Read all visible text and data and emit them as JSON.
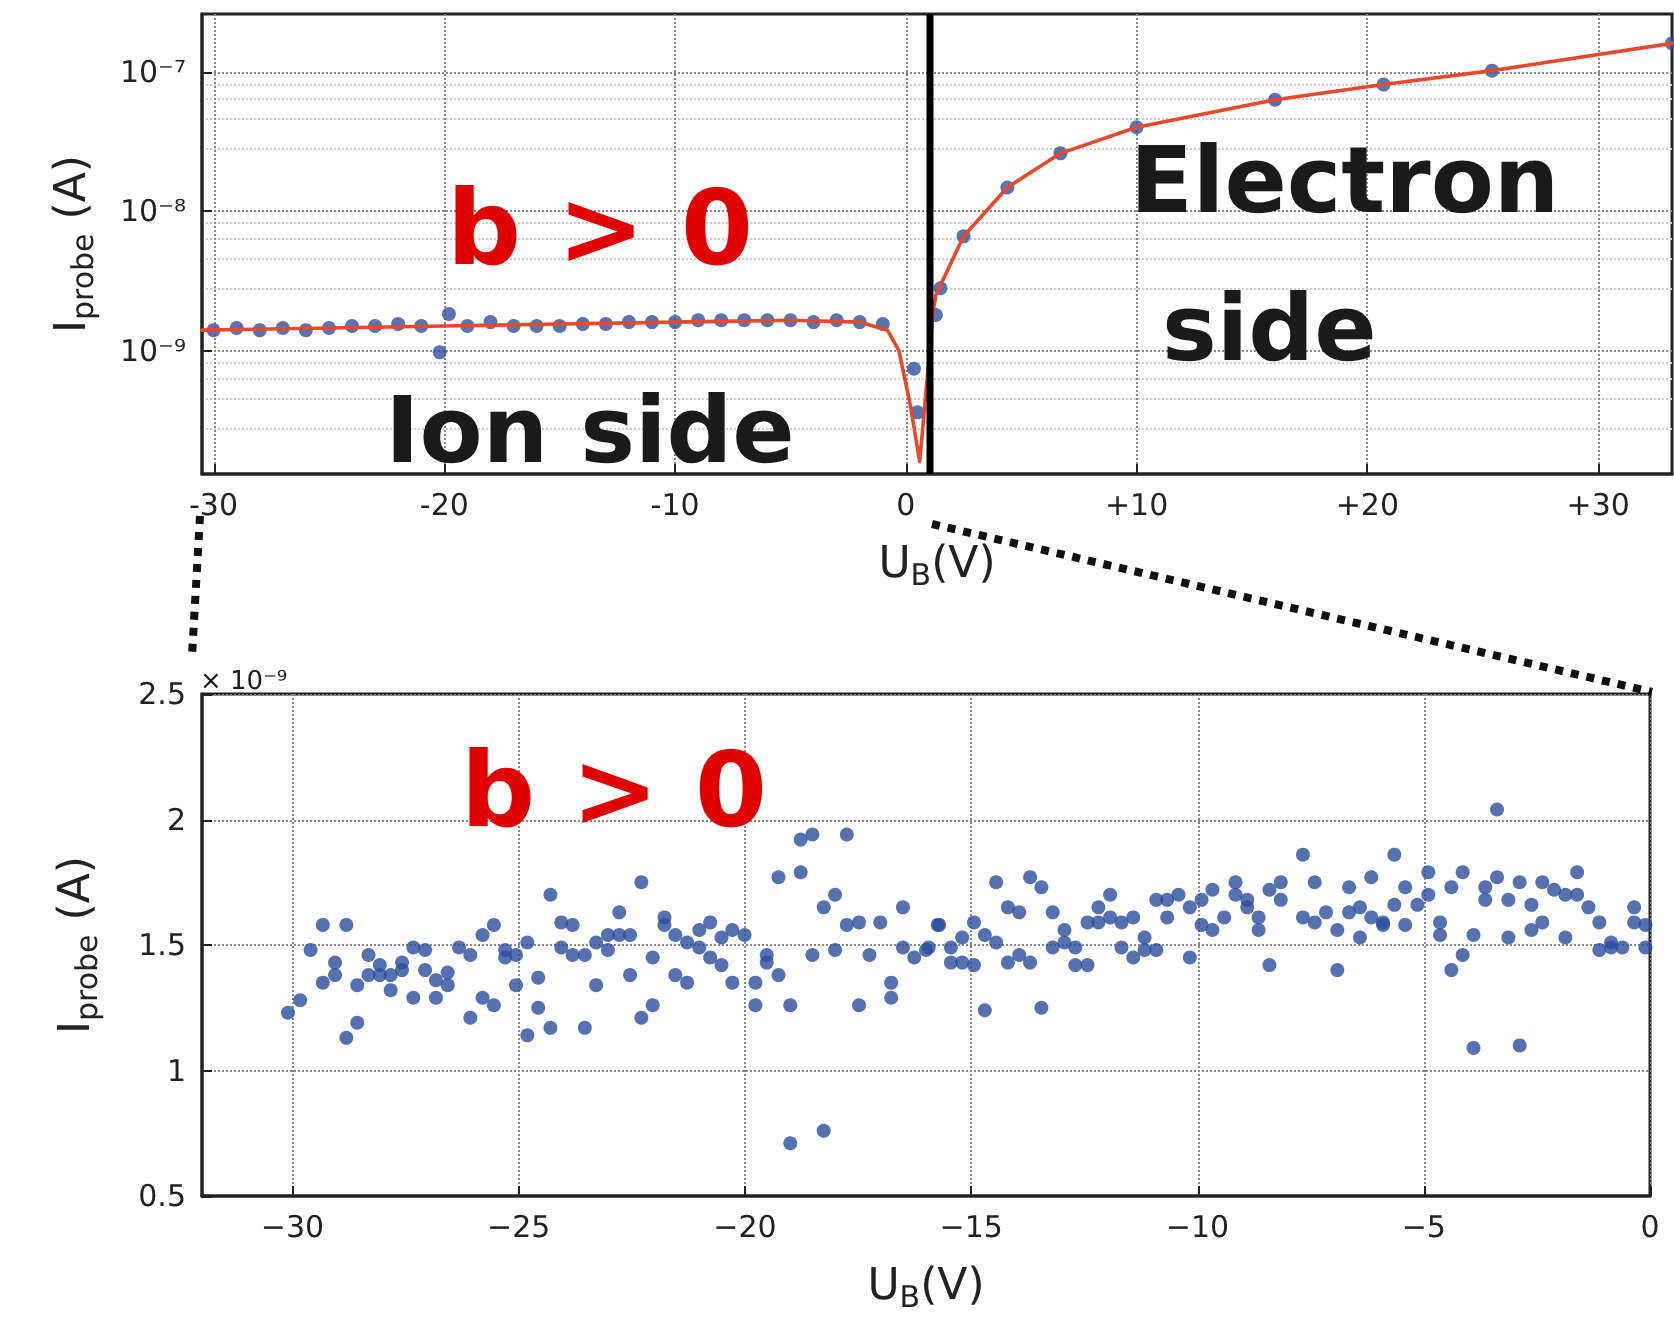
{
  "chart_data": [
    {
      "type": "line",
      "xlabel": "U$_{B}$(V)",
      "ylabel": "I$_{probe}$ (A)",
      "log": "y",
      "grid": true,
      "xlim": [
        -30.5,
        33.2
      ],
      "xticks": [
        -30,
        -20,
        -10,
        0,
        {
          "value": 10,
          "label": "+10"
        },
        {
          "value": 20,
          "label": "+20"
        },
        {
          "value": 30,
          "label": "+30"
        }
      ],
      "ylim": [
        1.3e-10,
        2.6e-07
      ],
      "yticks": [
        {
          "value": 1e-09,
          "label": "10⁻⁹"
        },
        {
          "value": 1e-08,
          "label": "10⁻⁸"
        },
        {
          "value": 1e-07,
          "label": "10⁻⁷"
        }
      ],
      "annotations": [
        "b > 0",
        "Ion side",
        "Electron side"
      ],
      "ref_lines": [
        {
          "axis": "x",
          "value": 1,
          "label": null,
          "color": "#000000"
        }
      ],
      "series": [
        {
          "type": "scatter",
          "marker": "circle",
          "color": "#3050a0",
          "x": [
            -30,
            -29,
            -28,
            -27,
            -26,
            -25,
            -24,
            -23,
            -22,
            -21,
            -20.2,
            -19.8,
            -19,
            -18,
            -17,
            -16,
            -15,
            -14,
            -13,
            -12,
            -11,
            -10,
            -9,
            -8,
            -7,
            -6,
            -5,
            -4,
            -3,
            -2,
            -1,
            0.35,
            0.5,
            1.3,
            1.5,
            2.5,
            4.4,
            6.7,
            10,
            16,
            20.7,
            25.4,
            33.2
          ],
          "values": [
            1.4e-09,
            1.45e-09,
            1.4e-09,
            1.45e-09,
            1.4e-09,
            1.45e-09,
            1.5e-09,
            1.5e-09,
            1.55e-09,
            1.5e-09,
            9.7e-10,
            1.83e-09,
            1.5e-09,
            1.6e-09,
            1.5e-09,
            1.5e-09,
            1.5e-09,
            1.55e-09,
            1.55e-09,
            1.6e-09,
            1.6e-09,
            1.6e-09,
            1.65e-09,
            1.65e-09,
            1.65e-09,
            1.65e-09,
            1.65e-09,
            1.6e-09,
            1.65e-09,
            1.6e-09,
            1.55e-09,
            7.4e-10,
            3.6e-10,
            1.8e-09,
            2.8e-09,
            6.6e-09,
            1.48e-08,
            2.6e-08,
            4e-08,
            6.3e-08,
            8.1e-08,
            1.02e-07,
            1.6e-07
          ]
        },
        {
          "marker": "none",
          "color": "#e8482c",
          "x": [
            -30.5,
            -25,
            -20,
            -15,
            -10,
            -5,
            -2,
            -0.8,
            -0.3,
            0.2,
            0.6,
            1.2,
            1.3,
            2.5,
            4.4,
            6.7,
            10,
            16,
            20.7,
            25.4,
            33.2
          ],
          "values": [
            1.4e-09,
            1.45e-09,
            1.5e-09,
            1.55e-09,
            1.6e-09,
            1.65e-09,
            1.6e-09,
            1.4e-09,
            1e-09,
            4e-10,
            1.6e-10,
            2e-09,
            2.5e-09,
            6.6e-09,
            1.48e-08,
            2.6e-08,
            4e-08,
            6.3e-08,
            8.1e-08,
            1.02e-07,
            1.6e-07
          ]
        }
      ]
    },
    {
      "type": "scatter",
      "xlabel": "U$_{B}$(V)",
      "ylabel": "I$_{probe}$ (A)",
      "grid": true,
      "marker": "circle",
      "xlim": [
        -32,
        0
      ],
      "xticks": [
        {
          "value": -30,
          "label": "−30"
        },
        {
          "value": -25,
          "label": "−25"
        },
        {
          "value": -20,
          "label": "−20"
        },
        {
          "value": -15,
          "label": "−15"
        },
        {
          "value": -10,
          "label": "−10"
        },
        {
          "value": -5,
          "label": "−5"
        },
        0
      ],
      "ylim": [
        0.5,
        2.5
      ],
      "yticks": [
        0.5,
        1,
        1.5,
        2,
        2.5
      ],
      "annotations": [
        "b > 0",
        "× 10⁻⁹"
      ],
      "series": [
        {
          "color": "#2a4d9c",
          "x": [
            -30.1,
            -29.83,
            -29.6,
            -29.33,
            -29.33,
            -29.06,
            -29.06,
            -28.81,
            -28.81,
            -28.57,
            -28.57,
            -28.32,
            -28.32,
            -28.07,
            -28.07,
            -27.83,
            -27.83,
            -27.58,
            -27.58,
            -27.33,
            -27.33,
            -27.07,
            -27.07,
            -26.83,
            -26.83,
            -26.57,
            -26.57,
            -26.32,
            -26.07,
            -26.07,
            -25.8,
            -25.8,
            -25.55,
            -25.55,
            -25.3,
            -25.3,
            -25.06,
            -25.06,
            -24.81,
            -24.81,
            -24.57,
            -24.57,
            -24.3,
            -24.3,
            -24.06,
            -24.06,
            -23.81,
            -23.81,
            -23.54,
            -23.54,
            -23.29,
            -23.29,
            -23.03,
            -23.03,
            -22.78,
            -22.78,
            -22.54,
            -22.54,
            -22.29,
            -22.29,
            -22.04,
            -22.04,
            -21.78,
            -21.78,
            -21.54,
            -21.54,
            -21.28,
            -21.28,
            -21.01,
            -21.01,
            -20.77,
            -20.77,
            -20.52,
            -20.52,
            -20.28,
            -20.28,
            -20.01,
            -19.77,
            -19.77,
            -19.52,
            -19.52,
            -19.26,
            -19.26,
            -19.0,
            -19.0,
            -18.77,
            -18.77,
            -18.51,
            -18.51,
            -18.26,
            -18.26,
            -18.01,
            -18.01,
            -17.75,
            -17.75,
            -17.48,
            -17.48,
            -17.25,
            -17.01,
            -16.77,
            -16.77,
            -16.51,
            -16.51,
            -16.26,
            -16.0,
            -15.74,
            -15.94,
            -15.71,
            -15.45,
            -15.45,
            -15.2,
            -15.2,
            -14.94,
            -14.94,
            -14.7,
            -14.7,
            -14.45,
            -14.45,
            -14.19,
            -14.19,
            -13.94,
            -13.94,
            -13.7,
            -13.7,
            -13.45,
            -13.45,
            -13.2,
            -13.2,
            -12.94,
            -12.94,
            -12.7,
            -12.7,
            -12.43,
            -12.43,
            -12.19,
            -12.19,
            -11.93,
            -11.93,
            -11.68,
            -11.68,
            -11.42,
            -11.42,
            -11.17,
            -11.17,
            -10.91,
            -10.91,
            -10.67,
            -10.67,
            -10.42,
            -10.17,
            -10.17,
            -9.91,
            -9.91,
            -9.67,
            -9.67,
            -9.41,
            -9.16,
            -9.16,
            -8.9,
            -8.9,
            -8.65,
            -8.65,
            -8.41,
            -8.41,
            -8.16,
            -8.16,
            -7.67,
            -7.67,
            -7.41,
            -7.41,
            -7.16,
            -6.91,
            -6.91,
            -6.65,
            -6.65,
            -6.41,
            -6.41,
            -6.16,
            -6.16,
            -5.9,
            -5.9,
            -5.65,
            -5.65,
            -5.41,
            -5.41,
            -5.14,
            -4.9,
            -4.9,
            -4.64,
            -4.64,
            -4.39,
            -4.39,
            -4.14,
            -4.14,
            -3.9,
            -3.9,
            -3.64,
            -3.64,
            -3.38,
            -3.38,
            -3.13,
            -3.13,
            -2.88,
            -2.88,
            -2.62,
            -2.62,
            -2.38,
            -2.38,
            -2.12,
            -1.87,
            -1.87,
            -1.61,
            -1.61,
            -1.36,
            -1.12,
            -1.12,
            -0.86,
            -0.86,
            -0.61,
            -0.35,
            -0.35,
            -0.1,
            -0.1
          ],
          "values": [
            1.23,
            1.28,
            1.48,
            1.58,
            1.35,
            1.43,
            1.38,
            1.58,
            1.13,
            1.34,
            1.19,
            1.46,
            1.38,
            1.42,
            1.38,
            1.38,
            1.32,
            1.43,
            1.4,
            1.49,
            1.29,
            1.48,
            1.4,
            1.36,
            1.29,
            1.39,
            1.34,
            1.49,
            1.46,
            1.21,
            1.54,
            1.29,
            1.58,
            1.26,
            1.48,
            1.45,
            1.46,
            1.34,
            1.51,
            1.14,
            1.37,
            1.25,
            1.7,
            1.17,
            1.59,
            1.49,
            1.58,
            1.46,
            1.46,
            1.17,
            1.51,
            1.34,
            1.48,
            1.54,
            1.63,
            1.54,
            1.54,
            1.38,
            1.75,
            1.21,
            1.45,
            1.26,
            1.61,
            1.58,
            1.54,
            1.38,
            1.51,
            1.35,
            1.56,
            1.49,
            1.59,
            1.45,
            1.53,
            1.42,
            1.56,
            1.35,
            1.54,
            1.35,
            1.26,
            1.46,
            1.43,
            1.77,
            1.38,
            1.26,
            0.71,
            1.92,
            1.79,
            1.94,
            1.46,
            1.65,
            0.76,
            1.7,
            1.48,
            1.94,
            1.58,
            1.59,
            1.26,
            1.46,
            1.59,
            1.35,
            1.29,
            1.65,
            1.49,
            1.45,
            1.48,
            1.58,
            1.49,
            1.58,
            1.49,
            1.43,
            1.53,
            1.43,
            1.59,
            1.42,
            1.54,
            1.24,
            1.75,
            1.51,
            1.65,
            1.43,
            1.63,
            1.46,
            1.77,
            1.43,
            1.73,
            1.25,
            1.63,
            1.49,
            1.56,
            1.51,
            1.49,
            1.42,
            1.59,
            1.42,
            1.65,
            1.59,
            1.7,
            1.61,
            1.59,
            1.49,
            1.61,
            1.45,
            1.53,
            1.48,
            1.68,
            1.48,
            1.68,
            1.61,
            1.7,
            1.65,
            1.45,
            1.68,
            1.58,
            1.72,
            1.56,
            1.61,
            1.75,
            1.7,
            1.68,
            1.65,
            1.61,
            1.56,
            1.72,
            1.42,
            1.75,
            1.68,
            1.86,
            1.61,
            1.75,
            1.59,
            1.63,
            1.56,
            1.4,
            1.73,
            1.63,
            1.65,
            1.53,
            1.77,
            1.61,
            1.59,
            1.58,
            1.86,
            1.66,
            1.73,
            1.58,
            1.66,
            1.79,
            1.7,
            1.59,
            1.54,
            1.73,
            1.4,
            1.79,
            1.46,
            1.54,
            1.09,
            1.73,
            1.68,
            2.04,
            1.77,
            1.68,
            1.53,
            1.75,
            1.1,
            1.66,
            1.56,
            1.75,
            1.59,
            1.72,
            1.7,
            1.53,
            1.79,
            1.7,
            1.65,
            1.59,
            1.48,
            1.51,
            1.49,
            1.49,
            1.65,
            1.59,
            1.58,
            1.49
          ]
        }
      ]
    }
  ]
}
